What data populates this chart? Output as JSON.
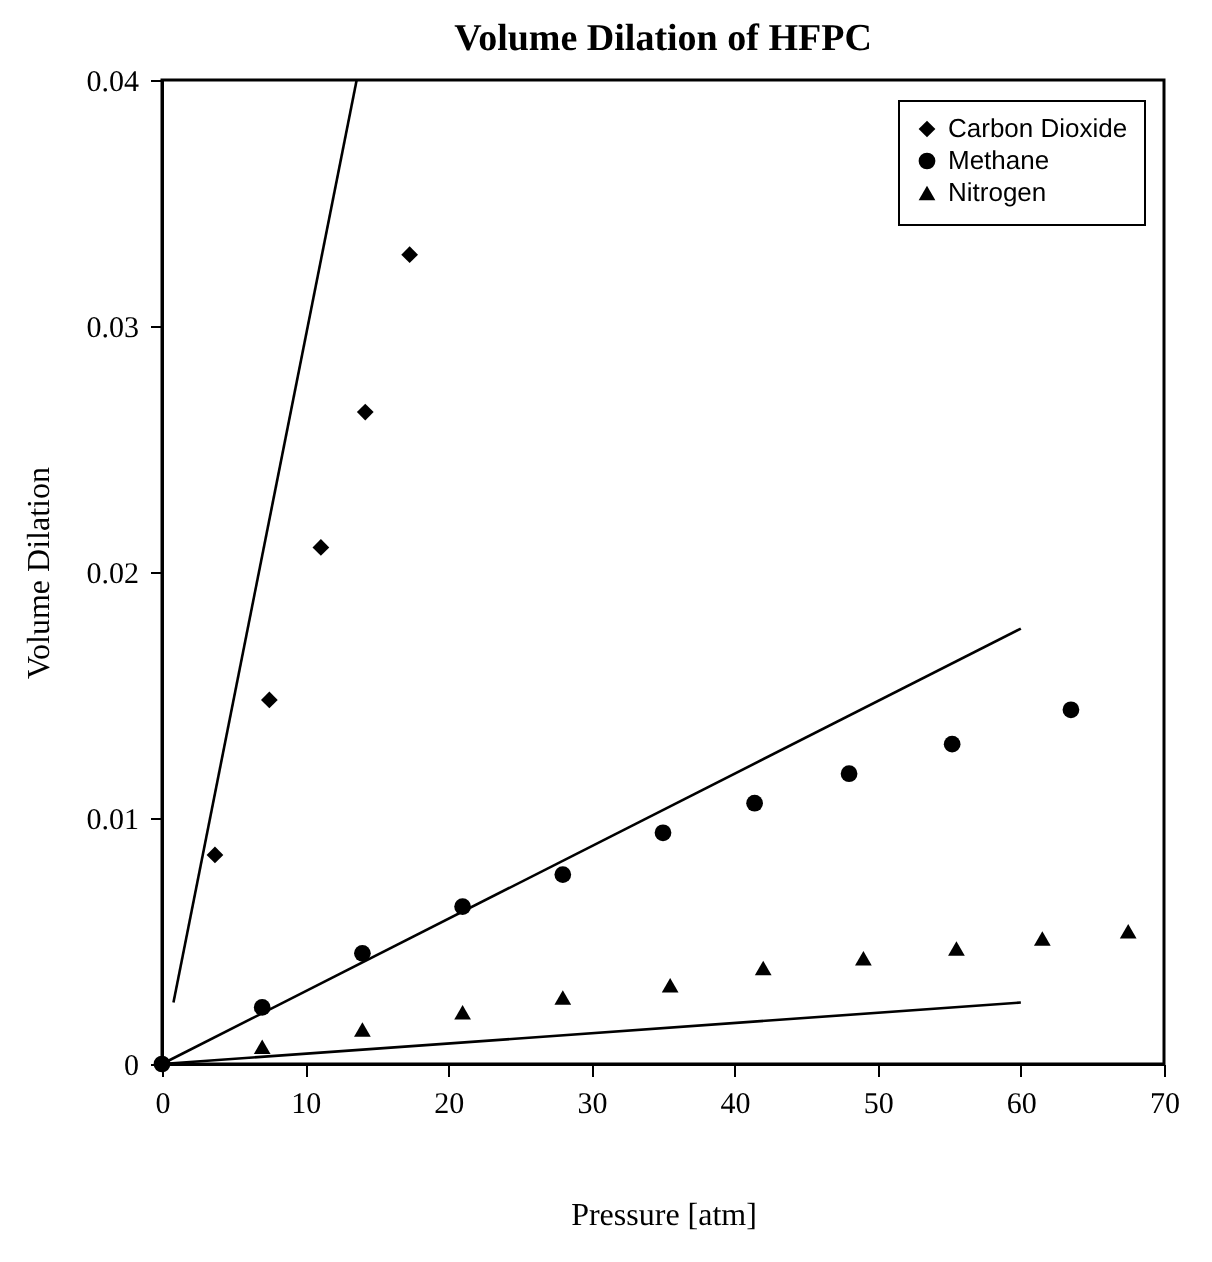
{
  "chart_data": {
    "type": "scatter",
    "title": "Volume Dilation of HFPC",
    "xlabel": "Pressure [atm]",
    "ylabel": "Volume  Dilation",
    "xlim": [
      0,
      70
    ],
    "xticks": [
      0,
      10,
      20,
      30,
      40,
      50,
      60,
      70
    ],
    "ylim": [
      0,
      0.04
    ],
    "yticks": [
      0,
      0.01,
      0.02,
      0.03,
      0.04
    ],
    "grid": false,
    "legend": "top right",
    "series": [
      {
        "name": "Carbon Dioxide",
        "color": "#000000",
        "marker": "diamond",
        "x": [
          3.7,
          7.5,
          11.1,
          14.2,
          17.3
        ],
        "values": [
          0.0085,
          0.0148,
          0.021,
          0.0265,
          0.0329
        ]
      },
      {
        "name": "Methane",
        "color": "#000000",
        "marker": "circle",
        "x": [
          0,
          7,
          14,
          21,
          28,
          35,
          41.4,
          48,
          55.2,
          63.5
        ],
        "values": [
          0,
          0.0023,
          0.0045,
          0.0064,
          0.0077,
          0.0094,
          0.0106,
          0.0118,
          0.013,
          0.0144
        ]
      },
      {
        "name": "Nitrogen",
        "color": "#000000",
        "marker": "triangle",
        "x": [
          7,
          14,
          21,
          28,
          35.5,
          42,
          49,
          55.5,
          61.5,
          67.5
        ],
        "values": [
          0.0007,
          0.0014,
          0.0021,
          0.0027,
          0.0032,
          0.0039,
          0.0043,
          0.0047,
          0.0051,
          0.0054
        ]
      },
      {
        "type": "line",
        "color": "#000000",
        "line_style": "solid",
        "x": [
          0.8,
          13.6
        ],
        "values": [
          0.0025,
          0.04
        ]
      },
      {
        "type": "line",
        "color": "#000000",
        "line_style": "solid",
        "x": [
          0,
          60
        ],
        "values": [
          0,
          0.0177
        ]
      },
      {
        "type": "line",
        "color": "#000000",
        "line_style": "solid",
        "x": [
          0,
          60
        ],
        "values": [
          0,
          0.0025
        ]
      }
    ]
  }
}
